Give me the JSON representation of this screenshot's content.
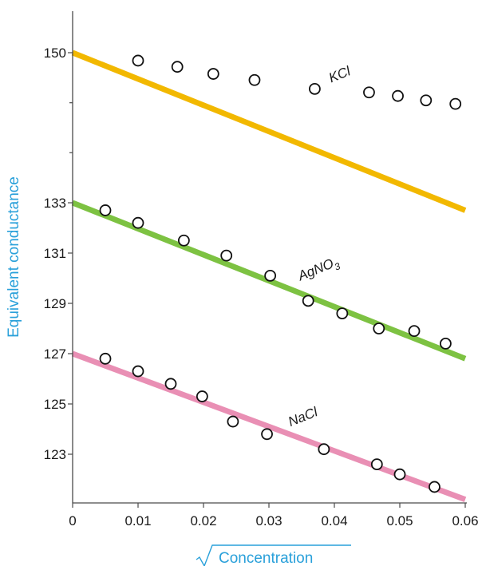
{
  "chart_data": {
    "type": "scatter",
    "title": "",
    "xlabel": "Concentration",
    "ylabel": "Equivalent conductance",
    "axis_title_color": "#29a0da",
    "xlim": [
      0,
      0.06
    ],
    "x_ticks": [
      0,
      0.01,
      0.02,
      0.03,
      0.04,
      0.05,
      0.06
    ],
    "x_tick_labels": [
      "0",
      "0.01",
      "0.02",
      "0.03",
      "0.04",
      "0.05",
      "0.06"
    ],
    "y_tick_labels": [
      "150",
      "133",
      "131",
      "129",
      "127",
      "125",
      "123"
    ],
    "grid": false,
    "series": [
      {
        "name": "KCl",
        "color": "#f2b800",
        "line": [
          150,
          132.7
        ],
        "points": [
          {
            "x": 0.01,
            "y": 149.1
          },
          {
            "x": 0.016,
            "y": 148.4
          },
          {
            "x": 0.0215,
            "y": 147.6
          },
          {
            "x": 0.0278,
            "y": 146.9
          },
          {
            "x": 0.037,
            "y": 145.9
          },
          {
            "x": 0.0453,
            "y": 145.5
          },
          {
            "x": 0.0497,
            "y": 145.1
          },
          {
            "x": 0.054,
            "y": 144.6
          },
          {
            "x": 0.0585,
            "y": 144.2
          }
        ]
      },
      {
        "name": "AgNO3",
        "color": "#7dc242",
        "line": [
          133,
          126.8
        ],
        "points": [
          {
            "x": 0.005,
            "y": 132.7
          },
          {
            "x": 0.01,
            "y": 132.2
          },
          {
            "x": 0.017,
            "y": 131.5
          },
          {
            "x": 0.0235,
            "y": 130.9
          },
          {
            "x": 0.0302,
            "y": 130.1
          },
          {
            "x": 0.036,
            "y": 129.1
          },
          {
            "x": 0.0412,
            "y": 128.6
          },
          {
            "x": 0.0468,
            "y": 128.0
          },
          {
            "x": 0.0522,
            "y": 127.9
          },
          {
            "x": 0.057,
            "y": 127.4
          }
        ]
      },
      {
        "name": "NaCl",
        "color": "#e98fb4",
        "line": [
          127,
          121.2
        ],
        "points": [
          {
            "x": 0.005,
            "y": 126.8
          },
          {
            "x": 0.01,
            "y": 126.3
          },
          {
            "x": 0.015,
            "y": 125.8
          },
          {
            "x": 0.0198,
            "y": 125.3
          },
          {
            "x": 0.0245,
            "y": 124.3
          },
          {
            "x": 0.0297,
            "y": 123.8
          },
          {
            "x": 0.0384,
            "y": 123.2
          },
          {
            "x": 0.0465,
            "y": 122.6
          },
          {
            "x": 0.05,
            "y": 122.2
          },
          {
            "x": 0.0553,
            "y": 121.7
          }
        ]
      }
    ],
    "annotations": [
      {
        "series": "KCl",
        "text": "KCl",
        "x": 0.0395,
        "y": 146.6,
        "angle": -22
      },
      {
        "series": "AgNO3",
        "text": "AgNO",
        "subscript": "3",
        "x": 0.0348,
        "y": 129.9,
        "angle": -22
      },
      {
        "series": "NaCl",
        "text": "NaCl",
        "x": 0.0333,
        "y": 124.1,
        "angle": -22
      }
    ]
  }
}
